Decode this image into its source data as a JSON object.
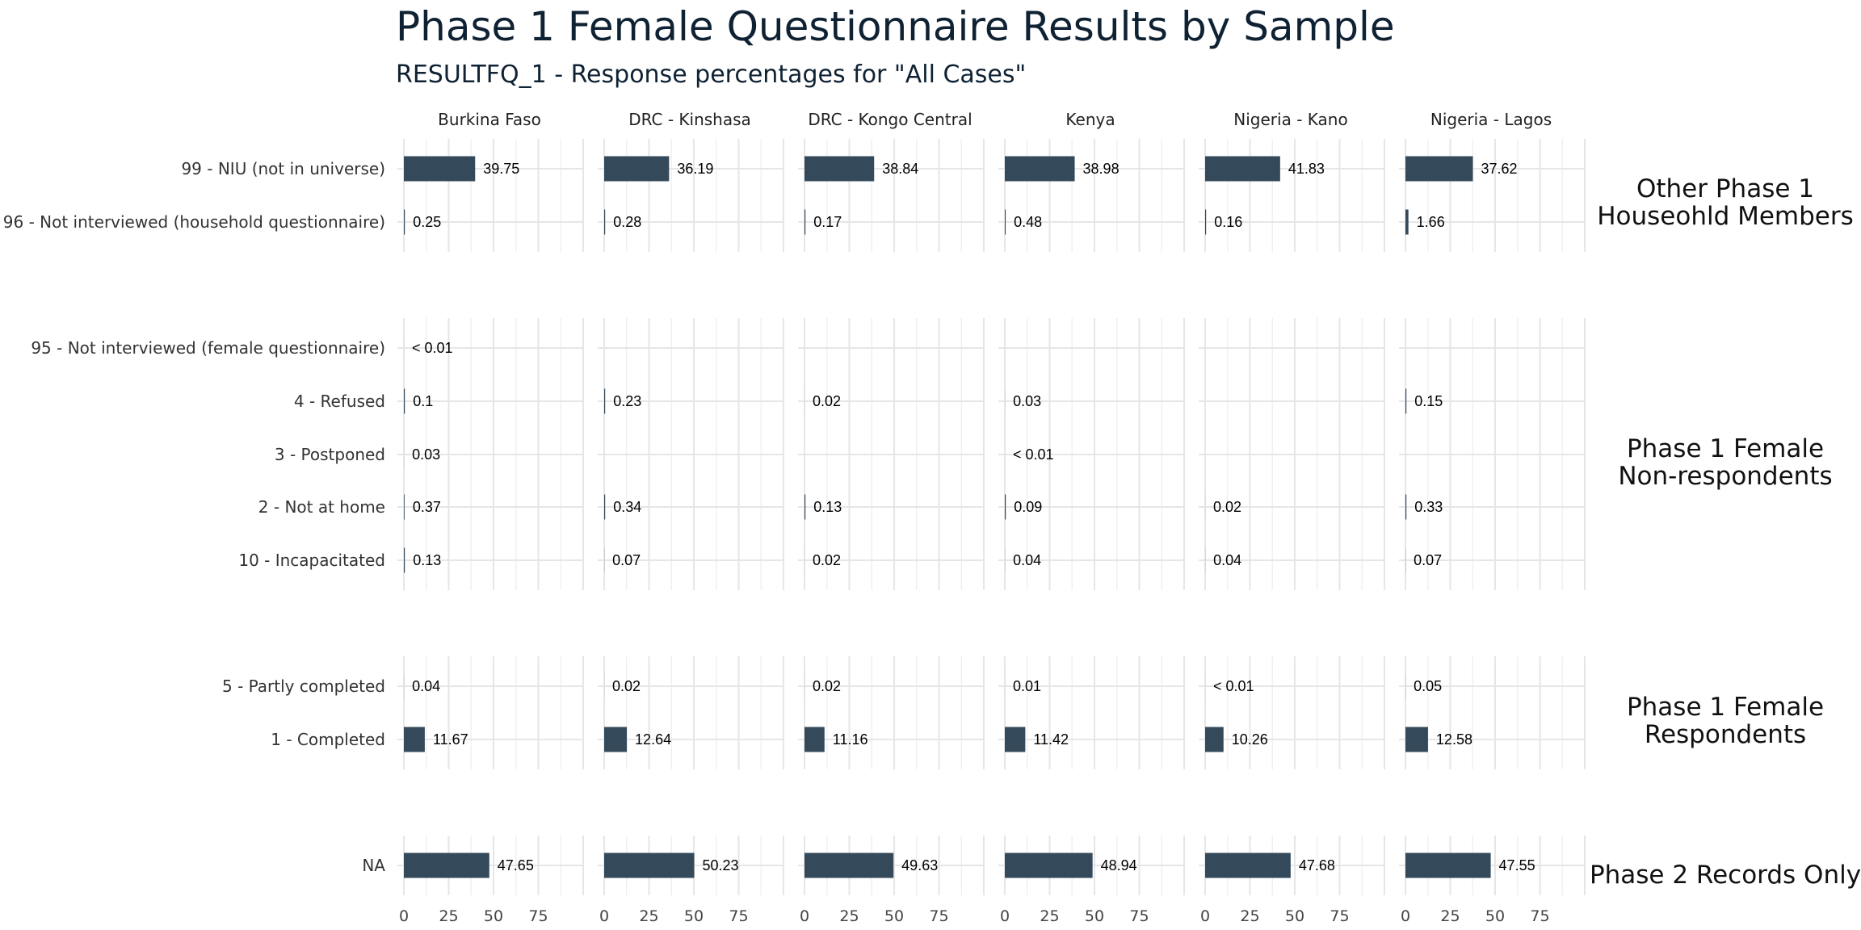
{
  "chart_data": {
    "type": "bar",
    "orientation": "horizontal",
    "title": "Phase 1 Female Questionnaire Results by Sample",
    "subtitle": "RESULTFQ_1 - Response percentages for \"All Cases\"",
    "facets": [
      "Burkina Faso",
      "DRC - Kinshasa",
      "DRC - Kongo Central",
      "Kenya",
      "Nigeria - Kano",
      "Nigeria - Lagos"
    ],
    "x_ticks": [
      0,
      25,
      50,
      75
    ],
    "xlim": [
      0,
      100
    ],
    "grid": true,
    "bar_color": "#34495a",
    "groups": [
      {
        "name": "Other Phase 1 Houseohld Members",
        "name_lines": [
          "Other Phase 1",
          "Houseohld Members"
        ],
        "categories": [
          {
            "label": "99 - NIU (not in universe)",
            "values": [
              39.75,
              36.19,
              38.84,
              38.98,
              41.83,
              37.62
            ],
            "value_labels": [
              "39.75",
              "36.19",
              "38.84",
              "38.98",
              "41.83",
              "37.62"
            ]
          },
          {
            "label": "96 - Not interviewed (household questionnaire)",
            "values": [
              0.25,
              0.28,
              0.17,
              0.48,
              0.16,
              1.66
            ],
            "value_labels": [
              "0.25",
              "0.28",
              "0.17",
              "0.48",
              "0.16",
              "1.66"
            ]
          }
        ]
      },
      {
        "name": "Phase 1 Female Non-respondents",
        "name_lines": [
          "Phase 1 Female",
          "Non-respondents"
        ],
        "categories": [
          {
            "label": "95 - Not interviewed (female questionnaire)",
            "values": [
              0.005,
              null,
              null,
              null,
              null,
              null
            ],
            "value_labels": [
              "< 0.01",
              "",
              "",
              "",
              "",
              ""
            ]
          },
          {
            "label": "4 - Refused",
            "values": [
              0.1,
              0.23,
              0.02,
              0.03,
              null,
              0.15
            ],
            "value_labels": [
              "0.1",
              "0.23",
              "0.02",
              "0.03",
              "",
              "0.15"
            ]
          },
          {
            "label": "3 - Postponed",
            "values": [
              0.03,
              null,
              null,
              0.005,
              null,
              null
            ],
            "value_labels": [
              "0.03",
              "",
              "",
              "< 0.01",
              "",
              ""
            ]
          },
          {
            "label": "2 - Not at home",
            "values": [
              0.37,
              0.34,
              0.13,
              0.09,
              0.02,
              0.33
            ],
            "value_labels": [
              "0.37",
              "0.34",
              "0.13",
              "0.09",
              "0.02",
              "0.33"
            ]
          },
          {
            "label": "10 - Incapacitated",
            "values": [
              0.13,
              0.07,
              0.02,
              0.04,
              0.04,
              0.07
            ],
            "value_labels": [
              "0.13",
              "0.07",
              "0.02",
              "0.04",
              "0.04",
              "0.07"
            ]
          }
        ]
      },
      {
        "name": "Phase 1 Female Respondents",
        "name_lines": [
          "Phase 1 Female",
          "Respondents"
        ],
        "categories": [
          {
            "label": "5 - Partly completed",
            "values": [
              0.04,
              0.02,
              0.02,
              0.01,
              0.005,
              0.05
            ],
            "value_labels": [
              "0.04",
              "0.02",
              "0.02",
              "0.01",
              "< 0.01",
              "0.05"
            ]
          },
          {
            "label": "1 - Completed",
            "values": [
              11.67,
              12.64,
              11.16,
              11.42,
              10.26,
              12.58
            ],
            "value_labels": [
              "11.67",
              "12.64",
              "11.16",
              "11.42",
              "10.26",
              "12.58"
            ]
          }
        ]
      },
      {
        "name": "Phase 2 Records Only",
        "name_lines": [
          "Phase 2 Records Only"
        ],
        "categories": [
          {
            "label": "NA",
            "values": [
              47.65,
              50.23,
              49.63,
              48.94,
              47.68,
              47.55
            ],
            "value_labels": [
              "47.65",
              "50.23",
              "49.63",
              "48.94",
              "47.68",
              "47.55"
            ]
          }
        ]
      }
    ]
  }
}
